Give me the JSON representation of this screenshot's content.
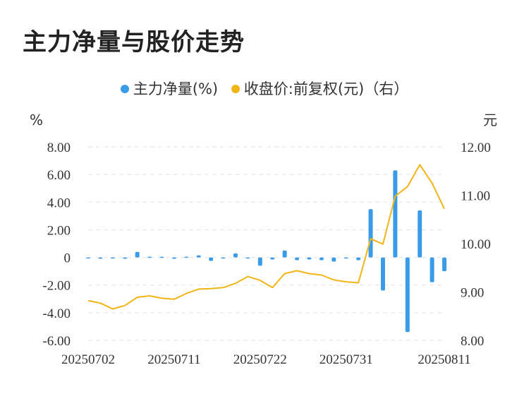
{
  "chart_data": {
    "type": "bar",
    "title": "主力净量与股价走势",
    "left_unit": "%",
    "right_unit": "元",
    "x_ticks": [
      "20250702",
      "20250711",
      "20250722",
      "20250731",
      "20250811"
    ],
    "y_left_ticks": [
      "8.00",
      "6.00",
      "4.00",
      "2.00",
      "0",
      "-2.00",
      "-4.00",
      "-6.00"
    ],
    "y_right_ticks": [
      "12.00",
      "11.00",
      "10.00",
      "9.00",
      "8.00"
    ],
    "ylim_left": [
      -6,
      8
    ],
    "ylim_right": [
      8,
      12
    ],
    "grid": true,
    "legend_position": "top-center",
    "series": [
      {
        "name": "主力净量(%)",
        "type": "bar",
        "color": "#3a9ce8",
        "values": [
          -0.05,
          -0.1,
          0.0,
          -0.1,
          0.4,
          0.05,
          0.05,
          -0.1,
          0.05,
          0.15,
          -0.25,
          -0.05,
          0.3,
          -0.05,
          -0.6,
          -0.15,
          0.5,
          -0.2,
          -0.15,
          -0.2,
          -0.3,
          0.0,
          -0.2,
          3.5,
          -2.4,
          6.3,
          -5.4,
          3.4,
          -1.8,
          -1.0
        ]
      },
      {
        "name": "收盘价:前复权(元)（右）",
        "type": "line",
        "color": "#f2b516",
        "values": [
          8.82,
          8.77,
          8.65,
          8.72,
          8.89,
          8.92,
          8.87,
          8.85,
          8.97,
          9.06,
          9.07,
          9.09,
          9.18,
          9.32,
          9.24,
          9.09,
          9.38,
          9.44,
          9.38,
          9.35,
          9.25,
          9.21,
          9.19,
          10.1,
          9.99,
          10.98,
          11.18,
          11.63,
          11.25,
          10.72
        ]
      }
    ]
  }
}
